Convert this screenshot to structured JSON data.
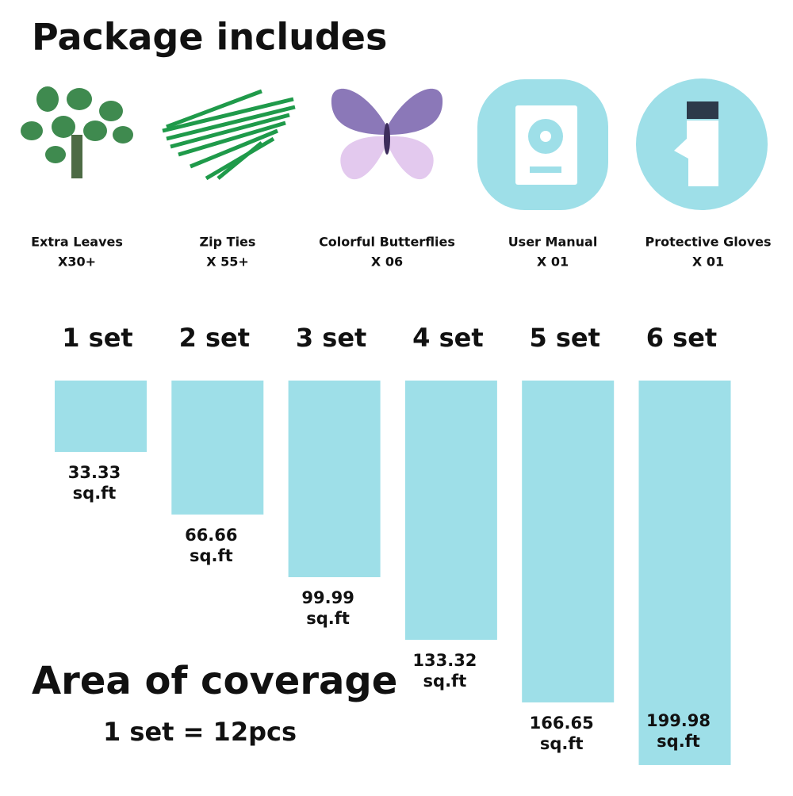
{
  "header": {
    "title": "Package includes"
  },
  "items": [
    {
      "name": "Extra Leaves",
      "qty": "X30+"
    },
    {
      "name": "Zip Ties",
      "qty": "X 55+"
    },
    {
      "name": "Colorful Butterflies",
      "qty": "X 06"
    },
    {
      "name": "User Manual",
      "qty": "X 01"
    },
    {
      "name": "Protective Gloves",
      "qty": "X 01"
    }
  ],
  "coverage": {
    "title": "Area of coverage",
    "note": "1 set = 12pcs",
    "bars": [
      {
        "label": "1 set",
        "value": 33.33,
        "unit": "sq.ft"
      },
      {
        "label": "2 set",
        "value": 66.66,
        "unit": "sq.ft"
      },
      {
        "label": "3 set",
        "value": 99.99,
        "unit": "sq.ft"
      },
      {
        "label": "4 set",
        "value": 133.32,
        "unit": "sq.ft"
      },
      {
        "label": "5 set",
        "value": 166.65,
        "unit": "sq.ft"
      },
      {
        "label": "6 set",
        "value": 199.98,
        "unit": "sq.ft"
      }
    ]
  }
}
